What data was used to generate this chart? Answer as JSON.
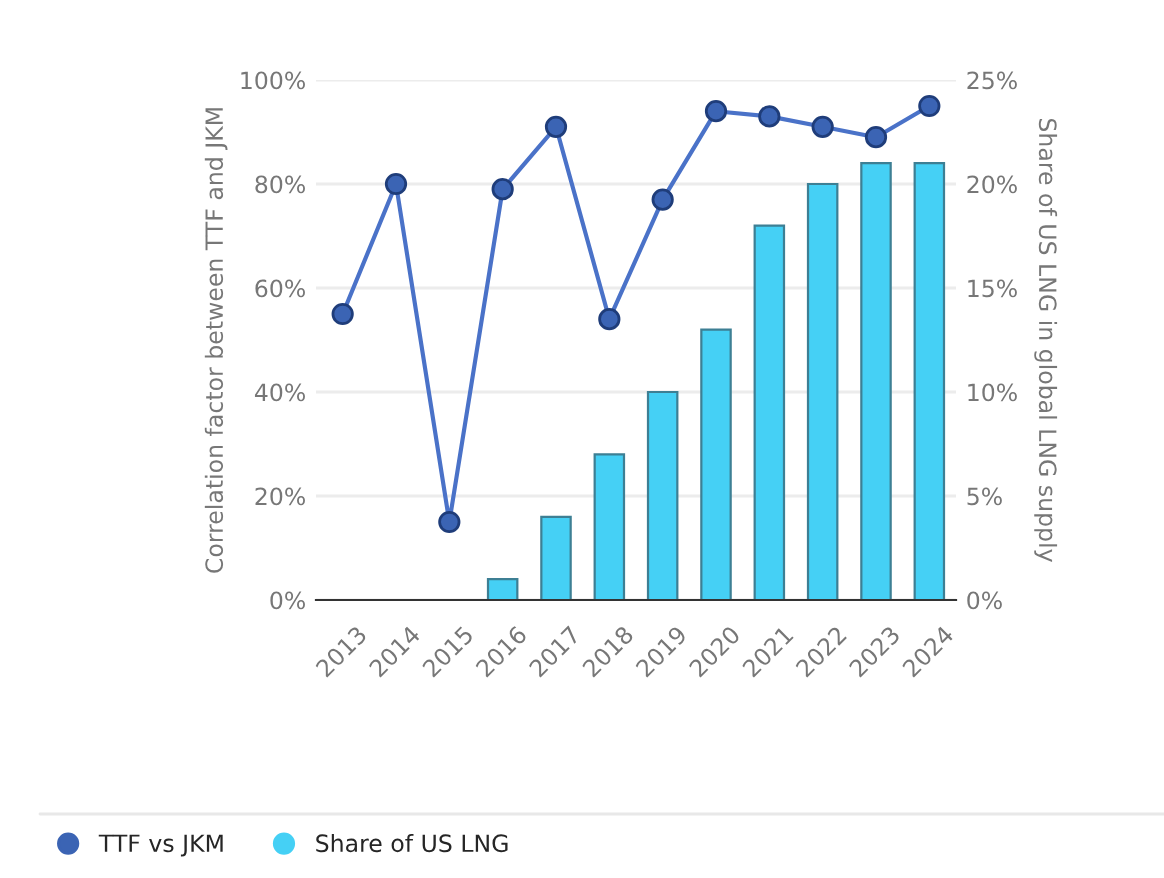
{
  "chart_data": {
    "type": "bar",
    "categories": [
      "2013",
      "2014",
      "2015",
      "2016",
      "2017",
      "2018",
      "2019",
      "2020",
      "2021",
      "2022",
      "2023",
      "2024"
    ],
    "series": [
      {
        "name": "TTF vs JKM",
        "type": "line",
        "color": "#4a72c8",
        "values": [
          55,
          80,
          15,
          79,
          91,
          54,
          77,
          94,
          93,
          91,
          89,
          95
        ]
      },
      {
        "name": "Share of US LNG",
        "axis": "y2",
        "color": "#45d0f5",
        "values": [
          null,
          null,
          null,
          1,
          4,
          7,
          10,
          13,
          18,
          20,
          21,
          21
        ]
      }
    ],
    "ylabel": "Correlation factor between TTF and JKM",
    "y2label": "Share of US LNG in global LNG supply",
    "ylim": [
      0,
      100
    ],
    "yticks": [
      {
        "value": 0,
        "label": "0%"
      },
      {
        "value": 20,
        "label": "20%"
      },
      {
        "value": 40,
        "label": "40%"
      },
      {
        "value": 60,
        "label": "60%"
      },
      {
        "value": 80,
        "label": "80%"
      },
      {
        "value": 100,
        "label": "100%"
      }
    ],
    "y2lim": [
      0,
      25
    ],
    "y2ticks": [
      {
        "value": 0,
        "label": "0%"
      },
      {
        "value": 5,
        "label": "5%"
      },
      {
        "value": 10,
        "label": "10%"
      },
      {
        "value": 15,
        "label": "15%"
      },
      {
        "value": 20,
        "label": "20%"
      },
      {
        "value": 25,
        "label": "25%"
      }
    ],
    "grid": "y",
    "marker": "circle",
    "line_style": "solid",
    "legend": "bottom left"
  }
}
